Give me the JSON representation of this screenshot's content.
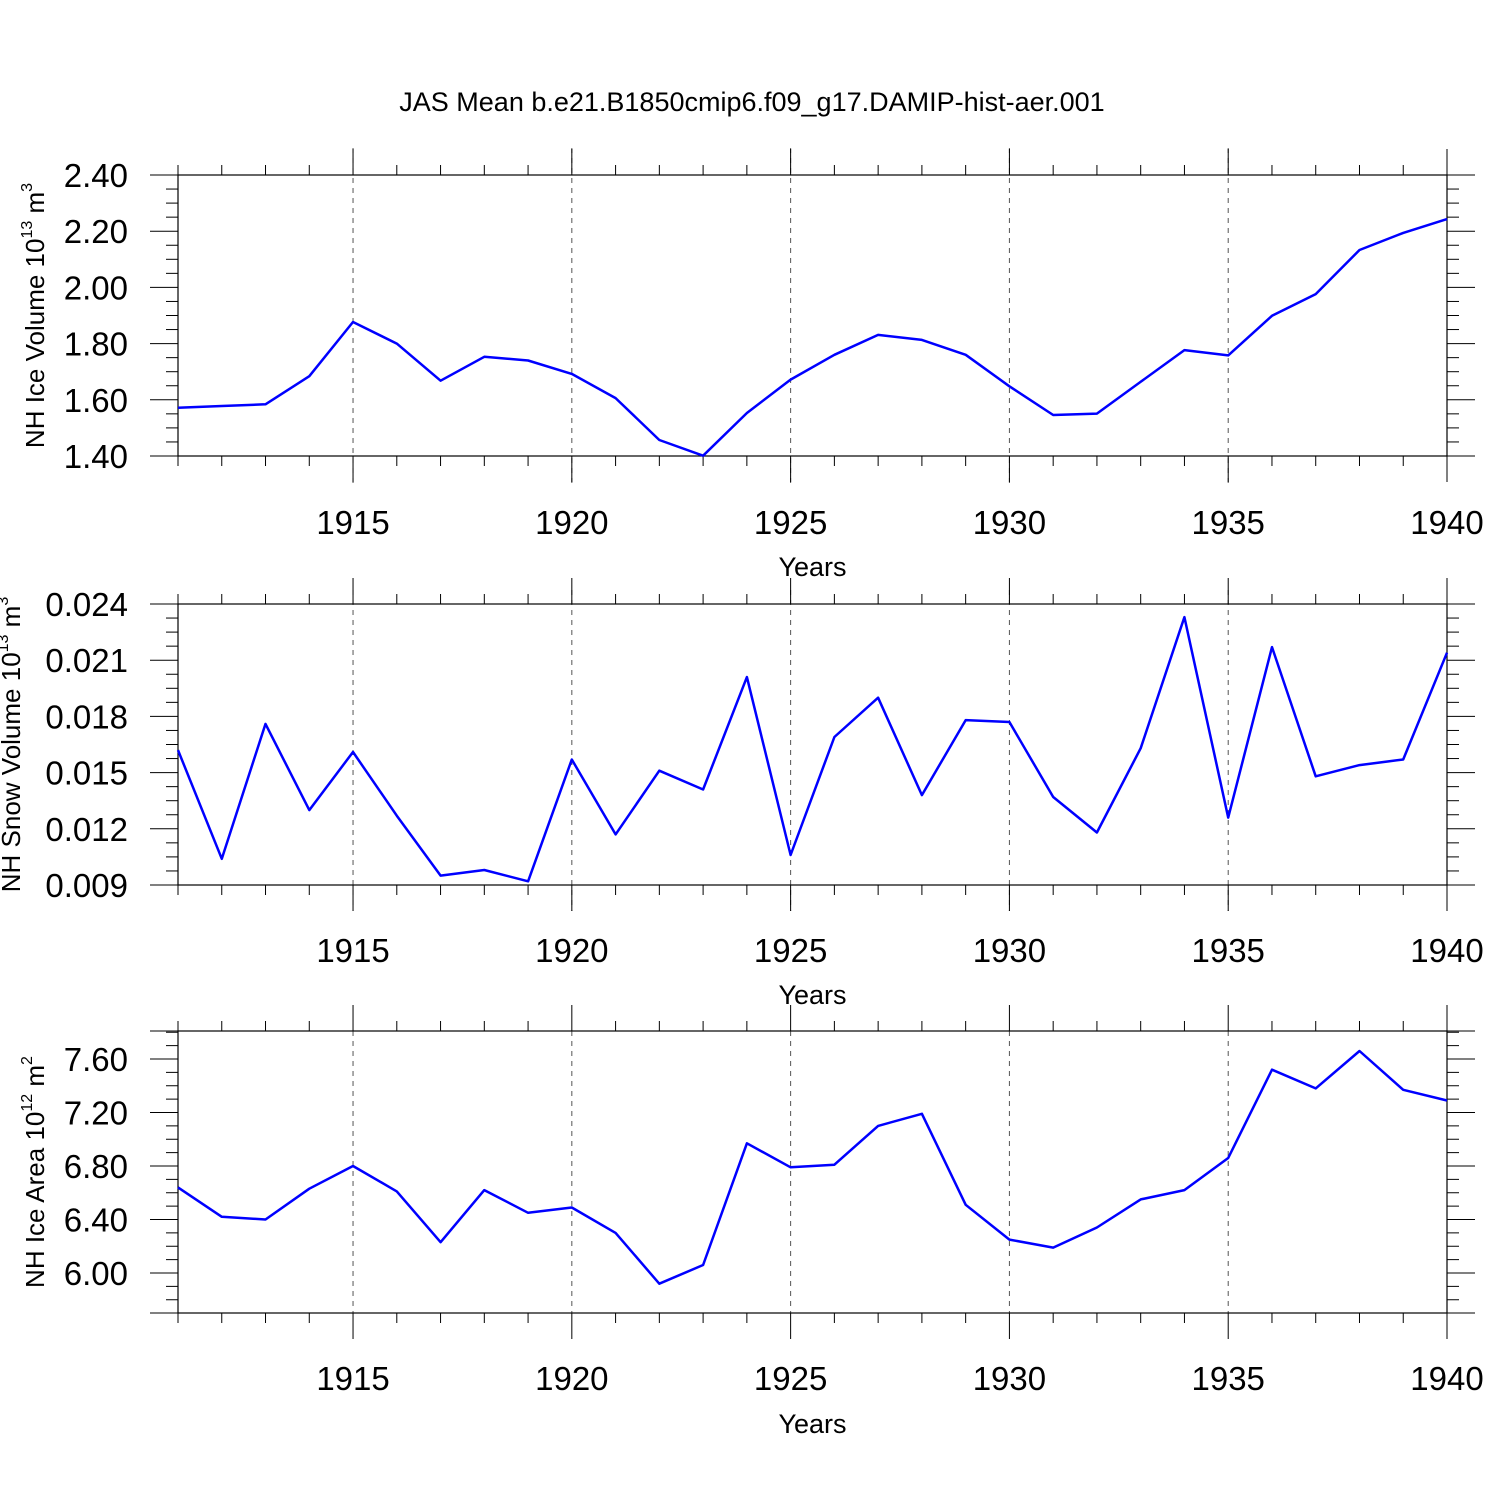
{
  "title": "JAS Mean b.e21.B1850cmip6.f09_g17.DAMIP-hist-aer.001",
  "line_color": "#0000ff",
  "chart_data": [
    {
      "type": "line",
      "title": "",
      "xlabel": "Years",
      "ylabel": {
        "text": "NH Ice Volume 10",
        "exp": "13",
        "unit": " m",
        "unit_exp": "3"
      },
      "xlim": [
        1911,
        1940
      ],
      "ylim": [
        1.4,
        2.4
      ],
      "xticks": [
        1915,
        1920,
        1925,
        1930,
        1935,
        1940
      ],
      "yticks": [
        "1.40",
        "1.60",
        "1.80",
        "2.00",
        "2.20",
        "2.40"
      ],
      "grid": "x-dashed",
      "series": [
        {
          "name": "NH Ice Volume",
          "x": [
            1911,
            1912,
            1913,
            1914,
            1915,
            1916,
            1917,
            1918,
            1919,
            1920,
            1921,
            1922,
            1923,
            1924,
            1925,
            1926,
            1927,
            1928,
            1929,
            1930,
            1931,
            1932,
            1933,
            1934,
            1935,
            1936,
            1937,
            1938,
            1939,
            1940
          ],
          "values": [
            1.572,
            1.578,
            1.584,
            1.684,
            1.877,
            1.8,
            1.668,
            1.753,
            1.74,
            1.692,
            1.606,
            1.457,
            1.401,
            1.553,
            1.672,
            1.76,
            1.831,
            1.813,
            1.76,
            1.648,
            1.546,
            1.551,
            1.664,
            1.777,
            1.758,
            1.899,
            1.976,
            2.133,
            2.194,
            2.243
          ]
        }
      ]
    },
    {
      "type": "line",
      "title": "",
      "xlabel": "Years",
      "ylabel": {
        "text": "NH Snow Volume 10",
        "exp": "13",
        "unit": " m",
        "unit_exp": "3"
      },
      "xlim": [
        1911,
        1940
      ],
      "ylim": [
        0.009,
        0.024
      ],
      "xticks": [
        1915,
        1920,
        1925,
        1930,
        1935,
        1940
      ],
      "yticks": [
        "0.009",
        "0.012",
        "0.015",
        "0.018",
        "0.021",
        "0.024"
      ],
      "grid": "x-dashed",
      "series": [
        {
          "name": "NH Snow Volume",
          "x": [
            1911,
            1912,
            1913,
            1914,
            1915,
            1916,
            1917,
            1918,
            1919,
            1920,
            1921,
            1922,
            1923,
            1924,
            1925,
            1926,
            1927,
            1928,
            1929,
            1930,
            1931,
            1932,
            1933,
            1934,
            1935,
            1936,
            1937,
            1938,
            1939,
            1940
          ],
          "values": [
            0.0162,
            0.0104,
            0.0176,
            0.013,
            0.0161,
            0.0127,
            0.0095,
            0.0098,
            0.0092,
            0.0157,
            0.0117,
            0.0151,
            0.0141,
            0.0201,
            0.0106,
            0.0169,
            0.019,
            0.0138,
            0.0178,
            0.0177,
            0.0137,
            0.0118,
            0.0163,
            0.0233,
            0.0126,
            0.0217,
            0.0148,
            0.0154,
            0.0157,
            0.0214
          ]
        }
      ]
    },
    {
      "type": "line",
      "title": "",
      "xlabel": "Years",
      "ylabel": {
        "text": "NH Ice Area 10",
        "exp": "12",
        "unit": " m",
        "unit_exp": "2"
      },
      "xlim": [
        1911,
        1940
      ],
      "ylim": [
        5.7,
        7.8
      ],
      "xticks": [
        1915,
        1920,
        1925,
        1930,
        1935,
        1940
      ],
      "yticks": [
        "6.00",
        "6.40",
        "6.80",
        "7.20",
        "7.60"
      ],
      "grid": "x-dashed",
      "series": [
        {
          "name": "NH Ice Area",
          "x": [
            1911,
            1912,
            1913,
            1914,
            1915,
            1916,
            1917,
            1918,
            1919,
            1920,
            1921,
            1922,
            1923,
            1924,
            1925,
            1926,
            1927,
            1928,
            1929,
            1930,
            1931,
            1932,
            1933,
            1934,
            1935,
            1936,
            1937,
            1938,
            1939,
            1940
          ],
          "values": [
            6.64,
            6.42,
            6.4,
            6.63,
            6.8,
            6.61,
            6.23,
            6.62,
            6.45,
            6.49,
            6.3,
            5.92,
            6.06,
            6.97,
            6.79,
            6.81,
            7.1,
            7.19,
            6.51,
            6.25,
            6.19,
            6.34,
            6.55,
            6.62,
            6.86,
            7.52,
            7.38,
            7.66,
            7.37,
            7.29
          ]
        }
      ]
    }
  ]
}
